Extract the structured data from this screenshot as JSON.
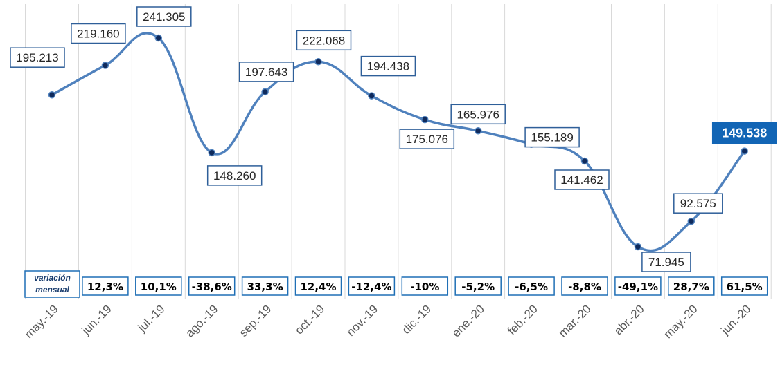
{
  "chart_data": {
    "type": "line",
    "title": "",
    "xlabel": "",
    "ylabel": "",
    "grid": "vertical",
    "categories": [
      "may.-19",
      "jun.-19",
      "jul.-19",
      "ago.-19",
      "sep.-19",
      "oct.-19",
      "nov.-19",
      "dic.-19",
      "ene.-20",
      "feb.-20",
      "mar.-20",
      "abr.-20",
      "may.-20",
      "jun.-20"
    ],
    "values": [
      195213,
      219160,
      241305,
      148260,
      197643,
      222068,
      194438,
      175076,
      165976,
      155189,
      141462,
      71945,
      92575,
      149538
    ],
    "data_labels": [
      "195.213",
      "219.160",
      "241.305",
      "148.260",
      "197.643",
      "222.068",
      "194.438",
      "175.076",
      "165.976",
      "155.189",
      "141.462",
      "71.945",
      "92.575",
      "149.538"
    ],
    "highlight_index": 13,
    "highlight_color": "#1265b5",
    "line_color": "#4f81bd",
    "point_color": "#0f2a5c",
    "variation": {
      "caption_line1": "variación",
      "caption_line2": "mensual",
      "labels": [
        "12,3%",
        "10,1%",
        "-38,6%",
        "33,3%",
        "12,4%",
        "-12,4%",
        "-10%",
        "-5,2%",
        "-6,5%",
        "-8,8%",
        "-49,1%",
        "28,7%",
        "61,5%"
      ],
      "values_percent": [
        12.3,
        10.1,
        -38.6,
        33.3,
        12.4,
        -12.4,
        -10,
        -5.2,
        -6.5,
        -8.8,
        -49.1,
        28.7,
        61.5
      ]
    }
  }
}
